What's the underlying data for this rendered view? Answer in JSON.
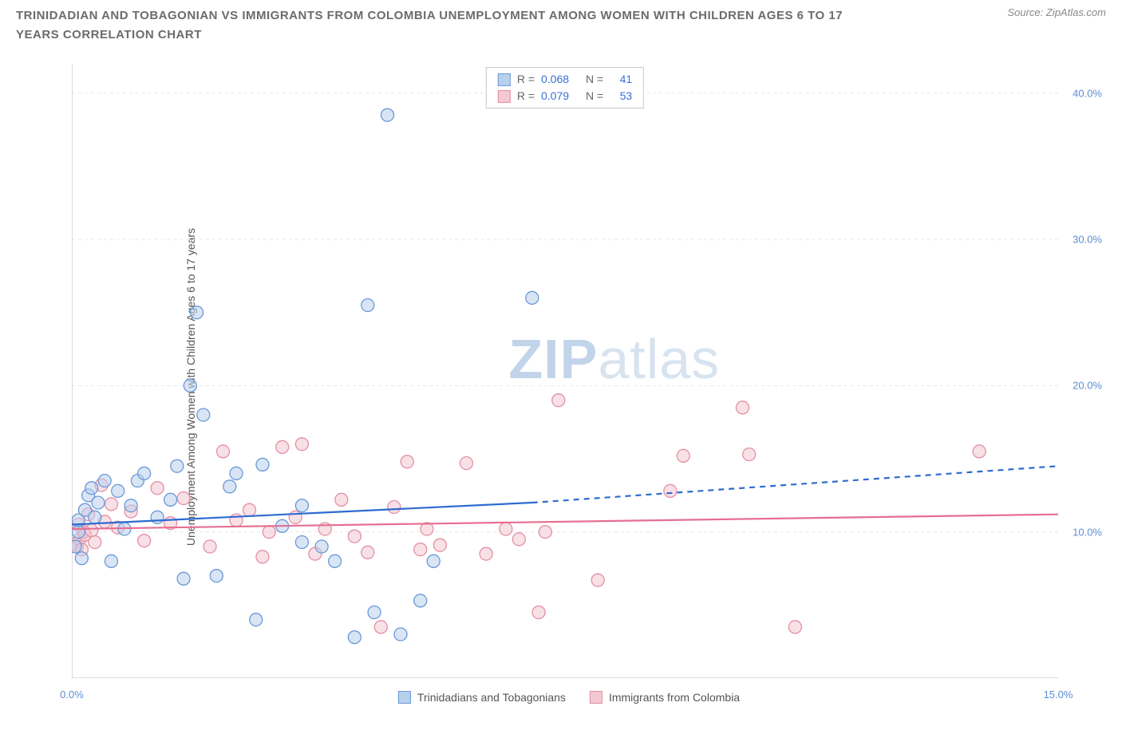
{
  "header": {
    "title": "TRINIDADIAN AND TOBAGONIAN VS IMMIGRANTS FROM COLOMBIA UNEMPLOYMENT AMONG WOMEN WITH CHILDREN AGES 6 TO 17 YEARS CORRELATION CHART",
    "source_prefix": "Source: ",
    "source_name": "ZipAtlas.com"
  },
  "chart": {
    "type": "scatter",
    "y_axis_label": "Unemployment Among Women with Children Ages 6 to 17 years",
    "xlim": [
      0,
      15
    ],
    "ylim": [
      0,
      42
    ],
    "x_ticks": [
      0,
      2.5,
      5,
      7.5,
      10,
      12.5,
      15
    ],
    "x_tick_labels": {
      "0": "0.0%",
      "15": "15.0%"
    },
    "y_ticks": [
      10,
      20,
      30,
      40
    ],
    "y_tick_labels": {
      "10": "10.0%",
      "20": "20.0%",
      "30": "30.0%",
      "40": "40.0%"
    },
    "background_color": "#ffffff",
    "grid_color": "#e8e8e8",
    "axis_line_color": "#b8b8b8",
    "marker_radius": 8,
    "marker_opacity": 0.55,
    "trend_line_width": 2.2,
    "watermark": {
      "bold": "ZIP",
      "rest": "atlas"
    }
  },
  "stats": {
    "rows": [
      {
        "color_fill": "#b9d0ed",
        "color_border": "#6a99d8",
        "r_label": "R =",
        "r": "0.068",
        "n_label": "N =",
        "n": "41"
      },
      {
        "color_fill": "#f3c8d2",
        "color_border": "#e48fa5",
        "r_label": "R =",
        "r": "0.079",
        "n_label": "N =",
        "n": "53"
      }
    ]
  },
  "legend": {
    "items": [
      {
        "label": "Trinidadians and Tobagonians",
        "fill": "#b9d0ed",
        "border": "#6a99d8"
      },
      {
        "label": "Immigrants from Colombia",
        "fill": "#f3c8d2",
        "border": "#e48fa5"
      }
    ]
  },
  "series": {
    "blue": {
      "fill": "#b9d0ed",
      "stroke": "#6a99d8",
      "trend_color": "#2d6bd0",
      "trend": {
        "x1": 0,
        "y1": 10.5,
        "x2_solid": 7,
        "y2_solid": 12.0,
        "x2_dash": 15,
        "y2_dash": 14.5
      },
      "points": [
        [
          0.05,
          9.0
        ],
        [
          0.1,
          10.0
        ],
        [
          0.1,
          10.8
        ],
        [
          0.15,
          8.2
        ],
        [
          0.2,
          11.5
        ],
        [
          0.25,
          12.5
        ],
        [
          0.3,
          13.0
        ],
        [
          0.35,
          11.0
        ],
        [
          0.4,
          12.0
        ],
        [
          0.5,
          13.5
        ],
        [
          0.6,
          8.0
        ],
        [
          0.7,
          12.8
        ],
        [
          0.8,
          10.2
        ],
        [
          0.9,
          11.8
        ],
        [
          1.0,
          13.5
        ],
        [
          1.1,
          14.0
        ],
        [
          1.3,
          11.0
        ],
        [
          1.5,
          12.2
        ],
        [
          1.6,
          14.5
        ],
        [
          1.7,
          6.8
        ],
        [
          1.8,
          20.0
        ],
        [
          1.9,
          25.0
        ],
        [
          2.0,
          18.0
        ],
        [
          2.2,
          7.0
        ],
        [
          2.4,
          13.1
        ],
        [
          2.5,
          14.0
        ],
        [
          2.8,
          4.0
        ],
        [
          2.9,
          14.6
        ],
        [
          3.2,
          10.4
        ],
        [
          3.5,
          9.3
        ],
        [
          3.5,
          11.8
        ],
        [
          3.8,
          9.0
        ],
        [
          4.0,
          8.0
        ],
        [
          4.3,
          2.8
        ],
        [
          4.5,
          25.5
        ],
        [
          4.6,
          4.5
        ],
        [
          4.8,
          38.5
        ],
        [
          5.0,
          3.0
        ],
        [
          5.3,
          5.3
        ],
        [
          5.5,
          8.0
        ],
        [
          7.0,
          26.0
        ]
      ]
    },
    "pink": {
      "fill": "#f3c8d2",
      "stroke": "#e48fa5",
      "trend_color": "#e56f91",
      "trend": {
        "x1": 0,
        "y1": 10.2,
        "x2_solid": 15,
        "y2_solid": 11.2
      },
      "points": [
        [
          0.05,
          9.2
        ],
        [
          0.08,
          9.0
        ],
        [
          0.1,
          10.5
        ],
        [
          0.12,
          9.5
        ],
        [
          0.15,
          8.8
        ],
        [
          0.18,
          10.0
        ],
        [
          0.2,
          9.8
        ],
        [
          0.25,
          11.2
        ],
        [
          0.3,
          10.1
        ],
        [
          0.35,
          9.3
        ],
        [
          0.45,
          13.2
        ],
        [
          0.5,
          10.7
        ],
        [
          0.6,
          11.9
        ],
        [
          0.7,
          10.3
        ],
        [
          0.9,
          11.4
        ],
        [
          1.1,
          9.4
        ],
        [
          1.3,
          13.0
        ],
        [
          1.5,
          10.6
        ],
        [
          1.7,
          12.3
        ],
        [
          2.1,
          9.0
        ],
        [
          2.3,
          15.5
        ],
        [
          2.5,
          10.8
        ],
        [
          2.7,
          11.5
        ],
        [
          2.9,
          8.3
        ],
        [
          3.0,
          10.0
        ],
        [
          3.2,
          15.8
        ],
        [
          3.4,
          11.0
        ],
        [
          3.5,
          16.0
        ],
        [
          3.7,
          8.5
        ],
        [
          3.85,
          10.2
        ],
        [
          4.1,
          12.2
        ],
        [
          4.3,
          9.7
        ],
        [
          4.5,
          8.6
        ],
        [
          4.7,
          3.5
        ],
        [
          4.9,
          11.7
        ],
        [
          5.1,
          14.8
        ],
        [
          5.3,
          8.8
        ],
        [
          5.4,
          10.2
        ],
        [
          5.6,
          9.1
        ],
        [
          6.0,
          14.7
        ],
        [
          6.3,
          8.5
        ],
        [
          6.6,
          10.2
        ],
        [
          6.8,
          9.5
        ],
        [
          7.1,
          4.5
        ],
        [
          7.2,
          10.0
        ],
        [
          7.4,
          19.0
        ],
        [
          8.0,
          6.7
        ],
        [
          9.1,
          12.8
        ],
        [
          9.3,
          15.2
        ],
        [
          10.2,
          18.5
        ],
        [
          10.3,
          15.3
        ],
        [
          11.0,
          3.5
        ],
        [
          13.8,
          15.5
        ]
      ]
    }
  }
}
